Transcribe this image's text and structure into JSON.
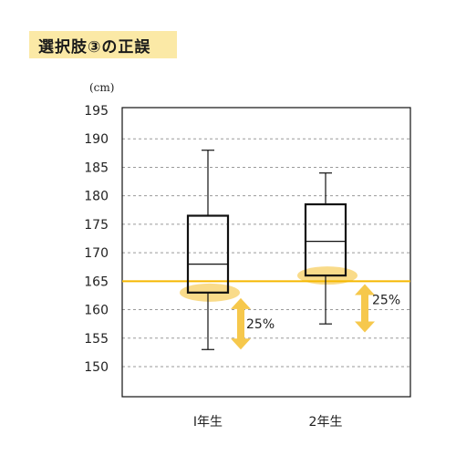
{
  "title": "選択肢③の正誤",
  "chart_data": {
    "type": "box",
    "ylabel": "(cm)",
    "ylim": [
      145,
      197
    ],
    "yticks": [
      150,
      155,
      160,
      165,
      170,
      175,
      180,
      185,
      190,
      195
    ],
    "grid": "horizontal-dashed",
    "categories": [
      "I年生",
      "2年生"
    ],
    "boxes": [
      {
        "category": "I年生",
        "min": 153,
        "q1": 163,
        "median": 168,
        "q3": 176.5,
        "max": 188
      },
      {
        "category": "2年生",
        "min": 157.5,
        "q1": 166,
        "median": 172,
        "q3": 178.5,
        "max": 184
      }
    ],
    "reference_line": {
      "value": 165,
      "color": "#f5b800"
    },
    "annotations": [
      {
        "category": "I年生",
        "text": "25%",
        "from": 163,
        "to": 153
      },
      {
        "category": "2年生",
        "text": "25%",
        "from": 166,
        "to": 157.5
      }
    ],
    "highlight_color": "#f6c84c"
  }
}
